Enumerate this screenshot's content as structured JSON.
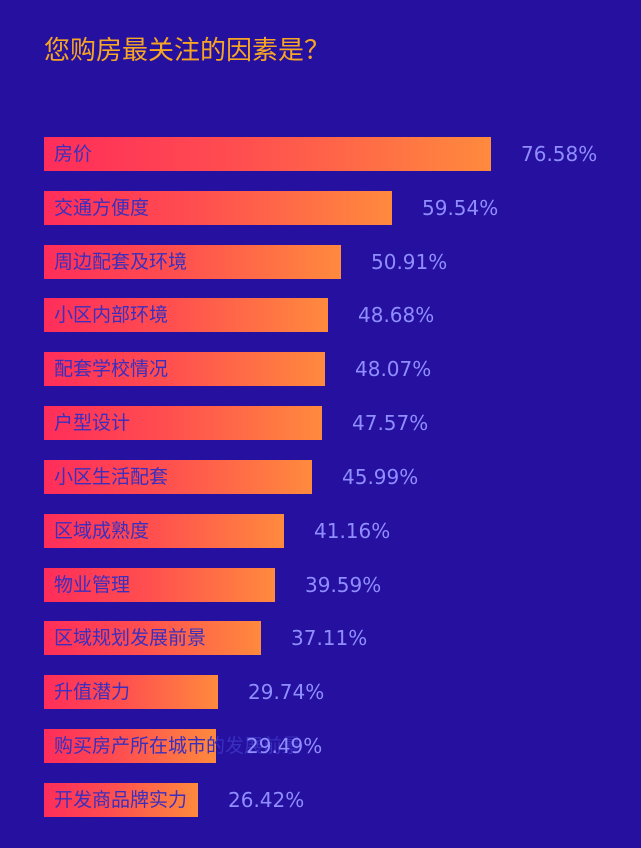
{
  "chart_data": {
    "type": "bar",
    "orientation": "horizontal",
    "title": "您购房最关注的因素是？",
    "categories": [
      "房价",
      "交通方便度",
      "周边配套及环境",
      "小区内部环境",
      "配套学校情况",
      "户型设计",
      "小区生活配套",
      "区域成熟度",
      "物业管理",
      "区域规划发展前景",
      "升值潜力",
      "购买房产所在城市的发展前景",
      "开发商品牌实力"
    ],
    "values": [
      76.58,
      59.54,
      50.91,
      48.68,
      48.07,
      47.57,
      45.99,
      41.16,
      39.59,
      37.11,
      29.74,
      29.49,
      26.42
    ],
    "value_labels": [
      "76.58%",
      "59.54%",
      "50.91%",
      "48.68%",
      "48.07%",
      "47.57%",
      "45.99%",
      "41.16%",
      "39.59%",
      "37.11%",
      "29.74%",
      "29.49%",
      "26.42%"
    ],
    "unit": "%",
    "xlim": [
      0,
      100
    ],
    "grid": false,
    "legend": "none",
    "colors": {
      "background": "#2510a0",
      "title": "#f6a623",
      "bar_start": "#ff2d5a",
      "bar_end": "#ff8a3d",
      "value_text": "#8f8dff",
      "category_text": "#3a2fbf"
    }
  }
}
